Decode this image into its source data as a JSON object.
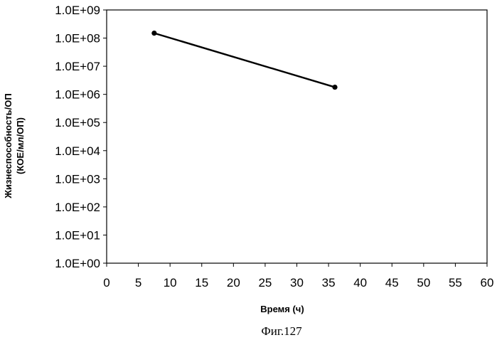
{
  "chart_data": {
    "type": "line",
    "xlabel": "Время (ч)",
    "ylabel_line1": "Жизнеспособность/ОП",
    "ylabel_line2": "(КОЕ/мл/ОП)",
    "caption": "Фиг.127",
    "xlim": [
      0,
      60
    ],
    "x_ticks": [
      0,
      5,
      10,
      15,
      20,
      25,
      30,
      35,
      40,
      45,
      50,
      55,
      60
    ],
    "y_scale": "log",
    "ylim": [
      1,
      1000000000
    ],
    "y_tick_labels": [
      "1.0E+00",
      "1.0E+01",
      "1.0E+02",
      "1.0E+03",
      "1.0E+04",
      "1.0E+05",
      "1.0E+06",
      "1.0E+07",
      "1.0E+08",
      "1.0E+09"
    ],
    "grid": false,
    "series": [
      {
        "x": [
          7.5,
          36
        ],
        "y": [
          150000000,
          1800000
        ],
        "color": "#000000",
        "marker": "circle"
      }
    ]
  }
}
